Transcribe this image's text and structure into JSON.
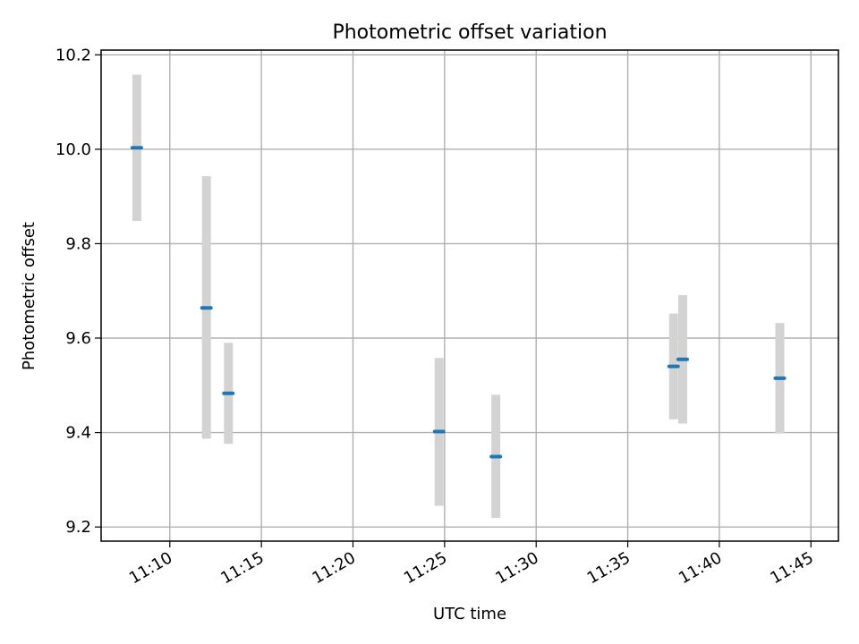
{
  "chart_data": {
    "type": "scatter",
    "title": "Photometric offset variation",
    "xlabel": "UTC time",
    "ylabel": "Photometric offset",
    "x_axis_kind": "time",
    "xlim": [
      "11:06:15",
      "11:46:30"
    ],
    "ylim": [
      9.17,
      10.21
    ],
    "x_ticks": [
      "11:10",
      "11:15",
      "11:20",
      "11:25",
      "11:30",
      "11:35",
      "11:40",
      "11:45"
    ],
    "y_ticks": [
      "9.2",
      "9.4",
      "9.6",
      "9.8",
      "10.0",
      "10.2"
    ],
    "grid": true,
    "points": [
      {
        "x": "11:08:12",
        "y": 10.003,
        "y_low": 9.848,
        "y_high": 10.158
      },
      {
        "x": "11:12:00",
        "y": 9.664,
        "y_low": 9.387,
        "y_high": 9.943
      },
      {
        "x": "11:13:12",
        "y": 9.483,
        "y_low": 9.376,
        "y_high": 9.59
      },
      {
        "x": "11:24:42",
        "y": 9.402,
        "y_low": 9.245,
        "y_high": 9.558
      },
      {
        "x": "11:27:48",
        "y": 9.349,
        "y_low": 9.219,
        "y_high": 9.48
      },
      {
        "x": "11:37:30",
        "y": 9.54,
        "y_low": 9.428,
        "y_high": 9.652
      },
      {
        "x": "11:38:00",
        "y": 9.555,
        "y_low": 9.419,
        "y_high": 9.691
      },
      {
        "x": "11:43:18",
        "y": 9.515,
        "y_low": 9.398,
        "y_high": 9.632
      }
    ],
    "colors": {
      "point": "#1f77b4",
      "error_bar": "#d3d3d3",
      "grid": "#b0b0b0"
    }
  }
}
